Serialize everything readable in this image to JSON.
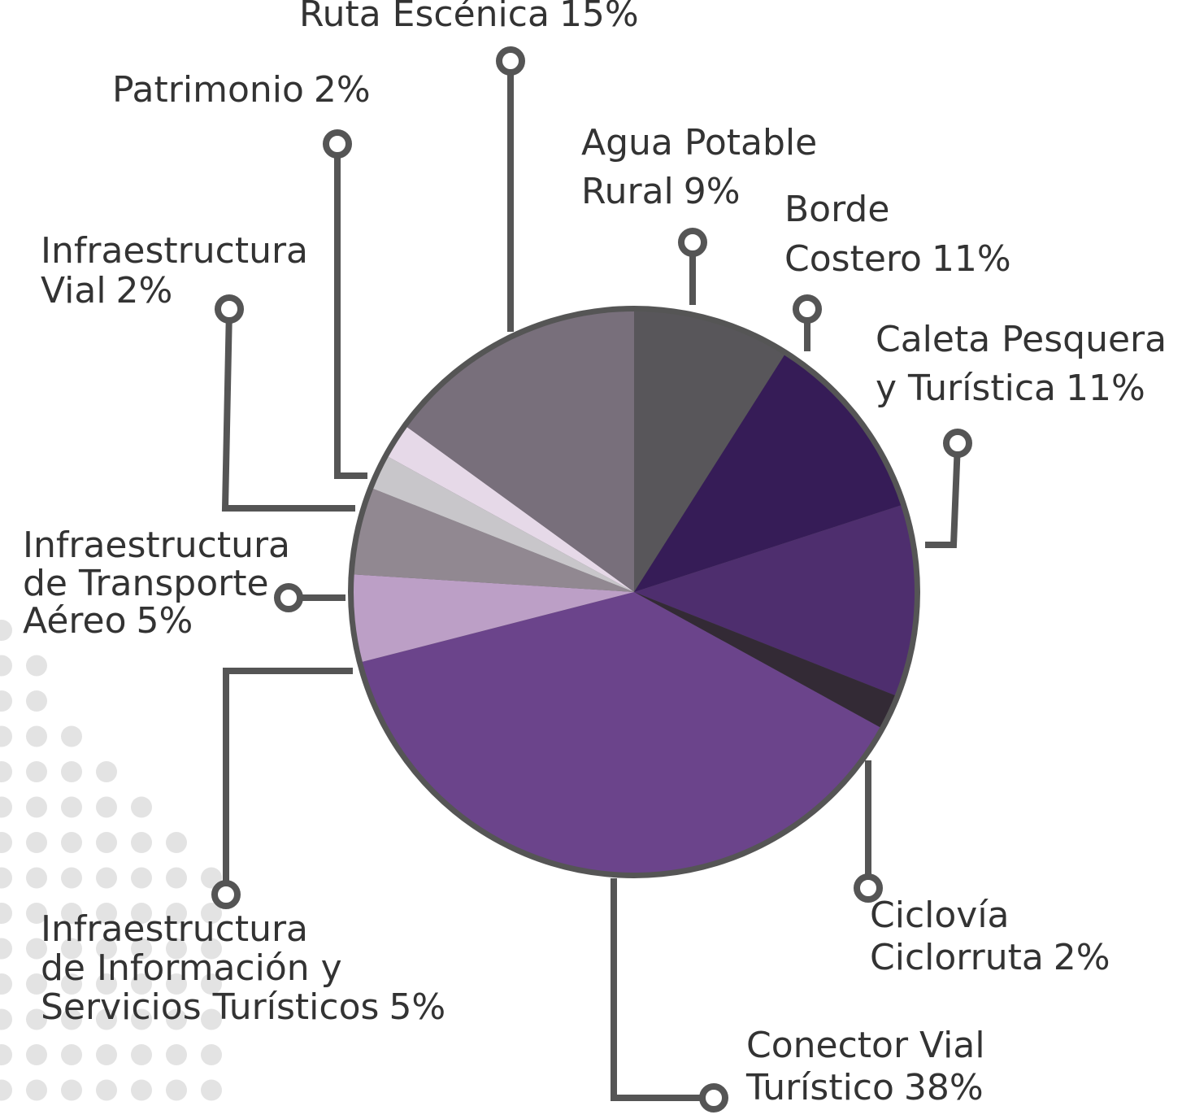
{
  "chart_data": {
    "type": "pie",
    "categories": [
      "Agua Potable Rural",
      "Borde Costero",
      "Caleta Pesquera y Turística",
      "Ciclovía Ciclorruta",
      "Conector Vial Turístico",
      "Infraestructura de Información y Servicios Turísticos",
      "Infraestructura de Transporte Aéreo",
      "Infraestructura Vial",
      "Patrimonio",
      "Ruta Escénica"
    ],
    "values": [
      9,
      11,
      11,
      2,
      38,
      5,
      5,
      2,
      2,
      15
    ],
    "value_labels": [
      "9%",
      "11%",
      "11%",
      "2%",
      "38%",
      "5%",
      "5%",
      "2%",
      "2%",
      "15%"
    ],
    "colors": [
      "#58565a",
      "#361c57",
      "#4e2e6e",
      "#332a35",
      "#6b448b",
      "#bc9fc6",
      "#918891",
      "#c8c6ca",
      "#e6d9e8",
      "#786f7b"
    ]
  }
}
